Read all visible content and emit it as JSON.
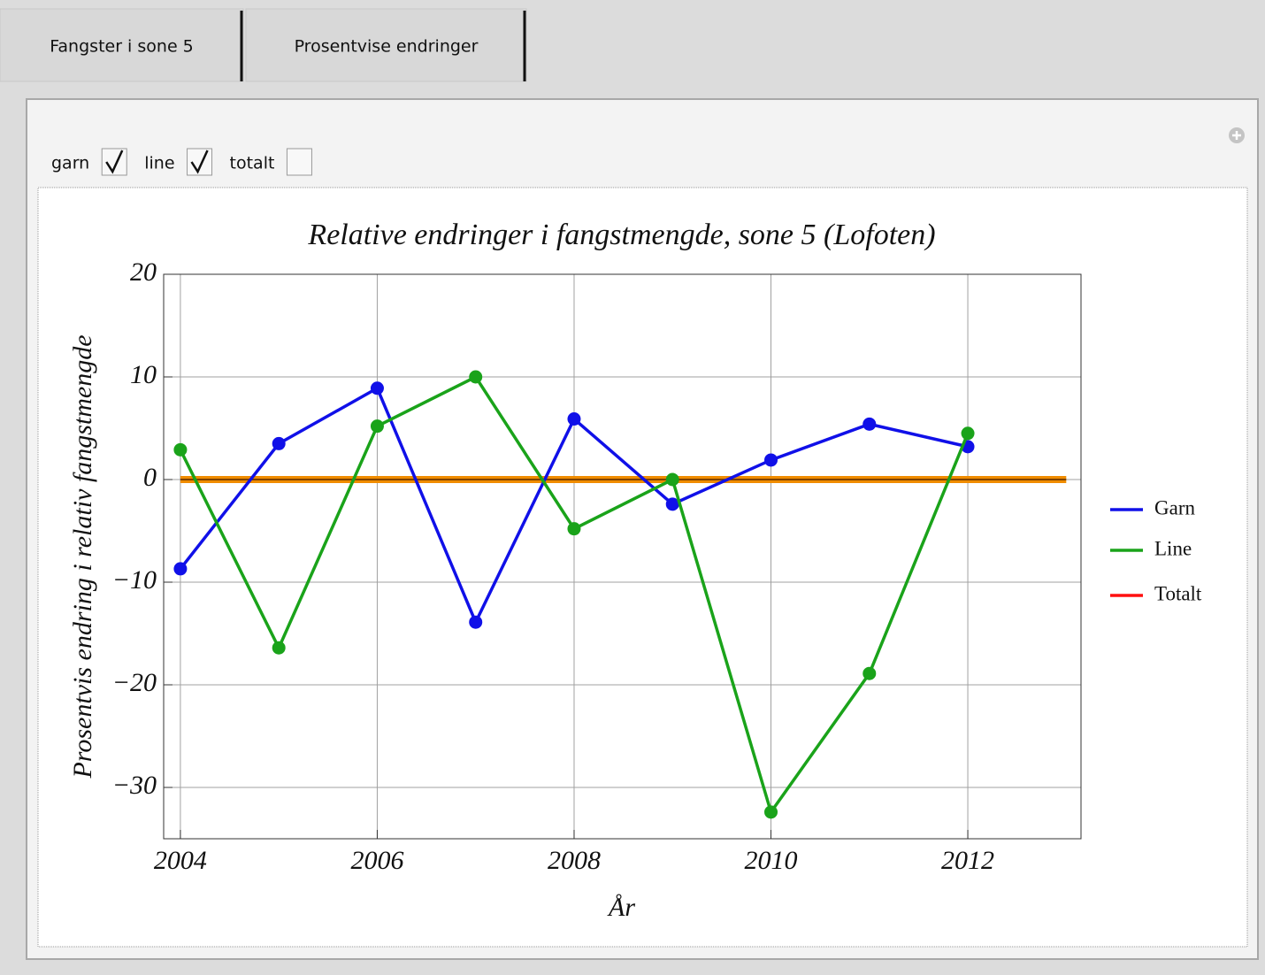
{
  "tabs": [
    "Fangster i sone 5",
    "Prosentvise endringer"
  ],
  "controls": [
    {
      "label": "garn",
      "checked": true
    },
    {
      "label": "line",
      "checked": true
    },
    {
      "label": "totalt",
      "checked": false
    }
  ],
  "chart_data": {
    "type": "line",
    "title": "Relative endringer i  fangstmengde, sone 5 (Lofoten)",
    "x_label": "År",
    "y_label": "Prosentvis endring i relativ  fangstmengde",
    "x": [
      2004,
      2005,
      2006,
      2007,
      2008,
      2009,
      2010,
      2011,
      2012
    ],
    "series": [
      {
        "name": "Garn",
        "color": "#1010e8",
        "values": [
          -8.7,
          3.5,
          8.9,
          -13.9,
          5.9,
          -2.4,
          1.9,
          5.4,
          3.2
        ]
      },
      {
        "name": "Line",
        "color": "#1aa31a",
        "values": [
          2.9,
          -16.4,
          5.2,
          10.0,
          -4.8,
          0.0,
          -32.4,
          -18.9,
          4.5
        ]
      },
      {
        "name": "Totalt",
        "color": "#ff1010",
        "values": [
          null,
          null,
          null,
          null,
          null,
          null,
          null,
          null,
          null
        ]
      }
    ],
    "reference_line": {
      "y": 0,
      "x": [
        2004,
        2013
      ],
      "color": "#f08c00"
    },
    "xlim": [
      2003.83,
      2013.15
    ],
    "ylim": [
      -35,
      20
    ],
    "xticks": [
      2004,
      2006,
      2008,
      2010,
      2012
    ],
    "yticks": [
      {
        "value": -30,
        "label": "−30"
      },
      {
        "value": -20,
        "label": "−20"
      },
      {
        "value": -10,
        "label": "−10"
      },
      0,
      10,
      20
    ],
    "grid": true,
    "legend": "right"
  }
}
